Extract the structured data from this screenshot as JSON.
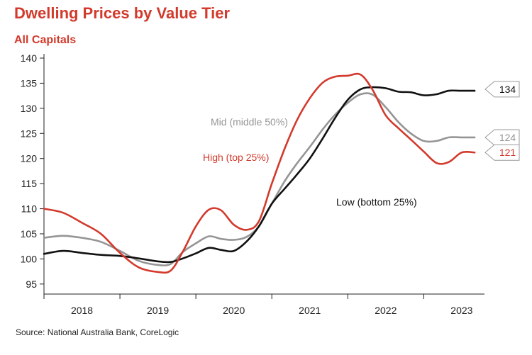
{
  "title": "Dwelling Prices by Value Tier",
  "subtitle": "All Capitals",
  "source": "Source: National Australia Bank, CoreLogic",
  "chart_data": {
    "type": "line",
    "title": "Dwelling Prices by Value Tier",
    "subtitle": "All Capitals",
    "xlabel": "",
    "ylabel": "",
    "ylim": [
      93,
      140
    ],
    "xlim": [
      2017.5,
      2023.3
    ],
    "yticks": [
      95,
      100,
      105,
      110,
      115,
      120,
      125,
      130,
      135,
      140
    ],
    "xticks": [
      {
        "label": "2018",
        "pos": 2018.0
      },
      {
        "label": "2019",
        "pos": 2019.0
      },
      {
        "label": "2020",
        "pos": 2020.0
      },
      {
        "label": "2021",
        "pos": 2021.0
      },
      {
        "label": "2022",
        "pos": 2022.0
      },
      {
        "label": "2023",
        "pos": 2023.0
      }
    ],
    "xseparators": [
      2017.5,
      2018.5,
      2019.5,
      2020.5,
      2021.5,
      2022.5
    ],
    "grid": false,
    "series": [
      {
        "name": "High (top 25%)",
        "color": "#d23a2c",
        "end_label": "121",
        "x": [
          2017.5,
          2017.75,
          2018.0,
          2018.25,
          2018.5,
          2018.75,
          2019.0,
          2019.17,
          2019.33,
          2019.5,
          2019.67,
          2019.83,
          2020.0,
          2020.17,
          2020.33,
          2020.5,
          2020.67,
          2020.83,
          2021.0,
          2021.17,
          2021.33,
          2021.5,
          2021.67,
          2021.83,
          2022.0,
          2022.17,
          2022.33,
          2022.5,
          2022.67,
          2022.83,
          2023.0,
          2023.17
        ],
        "values": [
          110.0,
          109.2,
          107.2,
          105.0,
          101.2,
          98.3,
          97.4,
          97.7,
          101.5,
          106.5,
          109.8,
          109.7,
          106.8,
          105.8,
          107.5,
          115.0,
          122.0,
          127.6,
          132.0,
          135.1,
          136.3,
          136.5,
          136.7,
          133.6,
          128.6,
          126.0,
          123.8,
          121.4,
          119.1,
          119.3,
          121.2,
          121.2
        ]
      },
      {
        "name": "Mid (middle 50%)",
        "color": "#959595",
        "end_label": "124",
        "x": [
          2017.5,
          2017.75,
          2018.0,
          2018.25,
          2018.5,
          2018.75,
          2019.0,
          2019.17,
          2019.33,
          2019.5,
          2019.67,
          2019.83,
          2020.0,
          2020.17,
          2020.33,
          2020.5,
          2020.67,
          2020.83,
          2021.0,
          2021.17,
          2021.33,
          2021.5,
          2021.67,
          2021.83,
          2022.0,
          2022.17,
          2022.33,
          2022.5,
          2022.67,
          2022.83,
          2023.0,
          2023.17
        ],
        "values": [
          104.2,
          104.6,
          104.2,
          103.4,
          101.6,
          99.6,
          98.8,
          99.0,
          101.4,
          103.1,
          104.5,
          104.0,
          103.8,
          104.4,
          106.5,
          111.0,
          115.5,
          119.0,
          122.3,
          125.8,
          128.7,
          131.1,
          132.8,
          132.7,
          130.2,
          127.2,
          125.0,
          123.5,
          123.5,
          124.2,
          124.2,
          124.2
        ]
      },
      {
        "name": "Low (bottom 25%)",
        "color": "#111111",
        "end_label": "134",
        "x": [
          2017.5,
          2017.75,
          2018.0,
          2018.25,
          2018.5,
          2018.75,
          2019.0,
          2019.17,
          2019.33,
          2019.5,
          2019.67,
          2019.83,
          2020.0,
          2020.17,
          2020.33,
          2020.5,
          2020.67,
          2020.83,
          2021.0,
          2021.17,
          2021.33,
          2021.5,
          2021.67,
          2021.83,
          2022.0,
          2022.17,
          2022.33,
          2022.5,
          2022.67,
          2022.83,
          2023.0,
          2023.17
        ],
        "values": [
          101.0,
          101.6,
          101.2,
          100.8,
          100.6,
          100.1,
          99.5,
          99.4,
          100.1,
          101.1,
          102.2,
          101.8,
          101.6,
          103.5,
          106.5,
          111.0,
          114.0,
          116.8,
          120.0,
          124.0,
          128.0,
          131.7,
          133.8,
          134.2,
          134.0,
          133.3,
          133.2,
          132.6,
          132.8,
          133.5,
          133.5,
          133.5
        ]
      }
    ],
    "annotations": [
      {
        "text": "Mid (middle 50%)",
        "series": 1
      },
      {
        "text": "High (top 25%)",
        "series": 0
      },
      {
        "text": "Low (bottom 25%)",
        "series": 2
      }
    ]
  }
}
